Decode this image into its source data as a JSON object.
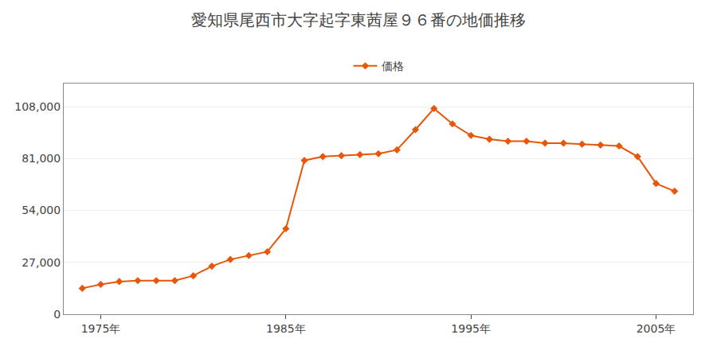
{
  "chart_data": {
    "type": "line",
    "title": "愛知県尾西市大字起字東茜屋９６番の地価推移",
    "x": [
      1974,
      1975,
      1976,
      1977,
      1978,
      1979,
      1980,
      1981,
      1982,
      1983,
      1984,
      1985,
      1986,
      1987,
      1988,
      1989,
      1990,
      1991,
      1992,
      1993,
      1994,
      1995,
      1996,
      1997,
      1998,
      1999,
      2000,
      2001,
      2002,
      2003,
      2004,
      2005,
      2006
    ],
    "series": [
      {
        "name": "価格",
        "color": "#e8560a",
        "marker": "diamond",
        "values": [
          13500,
          15500,
          17000,
          17500,
          17500,
          17500,
          20000,
          25000,
          28500,
          30500,
          32500,
          44500,
          80000,
          82000,
          82500,
          83000,
          83500,
          85500,
          96000,
          107000,
          99000,
          93000,
          91000,
          90000,
          90000,
          89000,
          89000,
          88500,
          88000,
          87500,
          82000,
          68000,
          64000
        ]
      }
    ],
    "xlim": [
      1973,
      2007
    ],
    "ylim": [
      0,
      120000
    ],
    "xticks": [
      {
        "value": 1975,
        "label": "1975年"
      },
      {
        "value": 1985,
        "label": "1985年"
      },
      {
        "value": 1995,
        "label": "1995年"
      },
      {
        "value": 2005,
        "label": "2005年"
      }
    ],
    "yticks": [
      0,
      {
        "value": 27000,
        "label": "27,000"
      },
      {
        "value": 54000,
        "label": "54,000"
      },
      {
        "value": 81000,
        "label": "81,000"
      },
      {
        "value": 108000,
        "label": "108,000"
      }
    ],
    "grid": "y",
    "legend": "top"
  }
}
